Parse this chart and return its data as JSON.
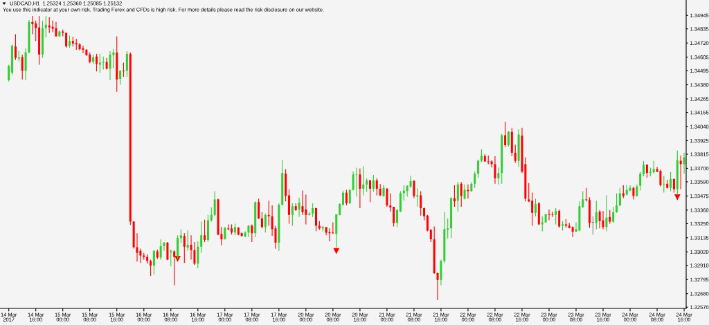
{
  "chart_data": {
    "type": "candlestick",
    "title": "USDCAD,H1  1.25324 1.25360 1.25085 1.25132",
    "subtitle": "You use this indicator at your own risk. Trading Forex and CFDs is high risk. For more details please read the risk disclosure on our website.",
    "categories": [
      "14 Mar 2017",
      null,
      null,
      null,
      null,
      null,
      null,
      null,
      "14 Mar 16:00",
      null,
      null,
      null,
      null,
      null,
      null,
      null,
      "15 Mar 00:00",
      null,
      null,
      null,
      null,
      null,
      null,
      null,
      "15 Mar 08:00",
      null,
      null,
      null,
      null,
      null,
      null,
      null,
      "15 Mar 16:00",
      null,
      null,
      null,
      null,
      null,
      null,
      null,
      "16 Mar 00:00",
      null,
      null,
      null,
      null,
      null,
      null,
      null,
      "16 Mar 08:00",
      null,
      null,
      null,
      null,
      null,
      null,
      null,
      "16 Mar 16:00",
      null,
      null,
      null,
      null,
      null,
      null,
      null,
      "17 Mar 00:00",
      null,
      null,
      null,
      null,
      null,
      null,
      null,
      "17 Mar 08:00",
      null,
      null,
      null,
      null,
      null,
      null,
      null,
      "17 Mar 16:00",
      null,
      null,
      null,
      null,
      null,
      null,
      null,
      "20 Mar 00:00",
      null,
      null,
      null,
      null,
      null,
      null,
      null,
      "20 Mar 08:00",
      null,
      null,
      null,
      null,
      null,
      null,
      null,
      "20 Mar 16:00",
      null,
      null,
      null,
      null,
      null,
      null,
      null,
      "21 Mar 00:00",
      null,
      null,
      null,
      null,
      null,
      null,
      null,
      "21 Mar 08:00",
      null,
      null,
      null,
      null,
      null,
      null,
      null,
      "21 Mar 16:00",
      null,
      null,
      null,
      null,
      null,
      null,
      null,
      "22 Mar 00:00",
      null,
      null,
      null,
      null,
      null,
      null,
      null,
      "22 Mar 08:00",
      null,
      null,
      null,
      null,
      null,
      null,
      null,
      "22 Mar 16:00",
      null,
      null,
      null,
      null,
      null,
      null,
      null,
      "23 Mar 00:00",
      null,
      null,
      null,
      null,
      null,
      null,
      null,
      "23 Mar 08:00",
      null,
      null,
      null,
      null,
      null,
      null,
      null,
      "23 Mar 16:00",
      null,
      null,
      null,
      null,
      null,
      null,
      null,
      "24 Mar 00:00",
      null,
      null,
      null,
      null,
      null,
      null,
      null,
      "24 Mar 08:00",
      null,
      null,
      null,
      null,
      null,
      null,
      null,
      "24 Mar 16:00"
    ],
    "ohlc": [
      [
        1.34417,
        1.34544,
        1.34406,
        1.34533
      ],
      [
        1.34478,
        1.34709,
        1.34461,
        1.34698
      ],
      [
        1.34692,
        1.34792,
        1.34582,
        1.34599
      ],
      [
        1.34593,
        1.34654,
        1.34571,
        1.34604
      ],
      [
        1.34604,
        1.34626,
        1.34423,
        1.34494
      ],
      [
        1.34494,
        1.34676,
        1.34417,
        1.34643
      ],
      [
        1.34643,
        1.34907,
        1.34637,
        1.34891
      ],
      [
        1.34891,
        1.3494,
        1.34792,
        1.34874
      ],
      [
        1.3488,
        1.34902,
        1.34737,
        1.34841
      ],
      [
        1.34847,
        1.3494,
        1.34544,
        1.34626
      ],
      [
        1.34626,
        1.34902,
        1.34599,
        1.34841
      ],
      [
        1.34841,
        1.3494,
        1.34764,
        1.34869
      ],
      [
        1.34863,
        1.34929,
        1.34803,
        1.34847
      ],
      [
        1.34852,
        1.34902,
        1.34808,
        1.34836
      ],
      [
        1.34841,
        1.34891,
        1.3477,
        1.34775
      ],
      [
        1.34775,
        1.34819,
        1.3477,
        1.34814
      ],
      [
        1.34814,
        1.3483,
        1.34775,
        1.34803
      ],
      [
        1.34803,
        1.34803,
        1.34681,
        1.34692
      ],
      [
        1.34698,
        1.34781,
        1.34681,
        1.34737
      ],
      [
        1.34737,
        1.3477,
        1.34692,
        1.34715
      ],
      [
        1.3472,
        1.34753,
        1.34665,
        1.34709
      ],
      [
        1.34709,
        1.3472,
        1.34659,
        1.3467
      ],
      [
        1.34676,
        1.34698,
        1.34637,
        1.34665
      ],
      [
        1.34665,
        1.3467,
        1.34615,
        1.34621
      ],
      [
        1.34626,
        1.34643,
        1.34555,
        1.34566
      ],
      [
        1.34566,
        1.34626,
        1.34549,
        1.34604
      ],
      [
        1.3461,
        1.34632,
        1.34489,
        1.34549
      ],
      [
        1.34544,
        1.34632,
        1.34478,
        1.3456
      ],
      [
        1.3456,
        1.3461,
        1.34505,
        1.34566
      ],
      [
        1.34566,
        1.34599,
        1.34505,
        1.34511
      ],
      [
        1.34511,
        1.34654,
        1.34417,
        1.34626
      ],
      [
        1.34621,
        1.3467,
        1.34516,
        1.34643
      ],
      [
        1.34643,
        1.34775,
        1.34323,
        1.34423
      ],
      [
        1.34428,
        1.345,
        1.34379,
        1.34494
      ],
      [
        1.34494,
        1.3456,
        1.34445,
        1.34489
      ],
      [
        1.34494,
        1.34654,
        1.34445,
        1.34632
      ],
      [
        1.34632,
        1.34643,
        1.3324,
        1.33267
      ],
      [
        1.33267,
        1.33271,
        1.33047,
        1.33058
      ],
      [
        1.33058,
        1.33172,
        1.32941,
        1.33012
      ],
      [
        1.33029,
        1.33047,
        1.3293,
        1.3299
      ],
      [
        1.3299,
        1.33012,
        1.32957,
        1.32979
      ],
      [
        1.32979,
        1.33001,
        1.32924,
        1.32946
      ],
      [
        1.32946,
        1.32957,
        1.32825,
        1.32908
      ],
      [
        1.32908,
        1.33034,
        1.32837,
        1.33029
      ],
      [
        1.33024,
        1.3304,
        1.32963,
        1.32974
      ],
      [
        1.32974,
        1.33122,
        1.32957,
        1.33067
      ],
      [
        1.33067,
        1.331,
        1.33029,
        1.33095
      ],
      [
        1.33095,
        1.331,
        1.32952,
        1.32957
      ],
      [
        1.33018,
        1.3304,
        1.32902,
        1.33029
      ],
      [
        1.33024,
        1.33034,
        1.32749,
        1.32979
      ],
      [
        1.32979,
        1.33155,
        1.32963,
        1.33133
      ],
      [
        1.33133,
        1.33205,
        1.33095,
        1.33155
      ],
      [
        1.3315,
        1.33172,
        1.3293,
        1.33062
      ],
      [
        1.33056,
        1.33194,
        1.33029,
        1.33078
      ],
      [
        1.33078,
        1.33155,
        1.32957,
        1.33034
      ],
      [
        1.33034,
        1.331,
        1.32913,
        1.32924
      ],
      [
        1.32924,
        1.33106,
        1.32886,
        1.33062
      ],
      [
        1.33062,
        1.33266,
        1.33012,
        1.33155
      ],
      [
        1.33155,
        1.33282,
        1.331,
        1.33117
      ],
      [
        1.33117,
        1.33321,
        1.331,
        1.33277
      ],
      [
        1.33277,
        1.33381,
        1.33266,
        1.33321
      ],
      [
        1.33321,
        1.33514,
        1.3331,
        1.33447
      ],
      [
        1.33447,
        1.33453,
        1.33155,
        1.33161
      ],
      [
        1.33166,
        1.33222,
        1.33073,
        1.33122
      ],
      [
        1.33122,
        1.33222,
        1.33122,
        1.33216
      ],
      [
        1.33211,
        1.33244,
        1.33194,
        1.33205
      ],
      [
        1.33211,
        1.33244,
        1.33161,
        1.33178
      ],
      [
        1.33178,
        1.33249,
        1.33155,
        1.33222
      ],
      [
        1.33216,
        1.33222,
        1.33155,
        1.33161
      ],
      [
        1.33172,
        1.33177,
        1.33144,
        1.3315
      ],
      [
        1.33144,
        1.33188,
        1.33139,
        1.33177
      ],
      [
        1.33177,
        1.33238,
        1.33139,
        1.33233
      ],
      [
        1.33233,
        1.33244,
        1.331,
        1.33172
      ],
      [
        1.33172,
        1.33431,
        1.33139,
        1.33425
      ],
      [
        1.33425,
        1.33453,
        1.33288,
        1.33293
      ],
      [
        1.33293,
        1.33343,
        1.33211,
        1.33222
      ],
      [
        1.33222,
        1.33332,
        1.33177,
        1.33321
      ],
      [
        1.33321,
        1.33437,
        1.33233,
        1.3331
      ],
      [
        1.3331,
        1.33398,
        1.3315,
        1.33205
      ],
      [
        1.33211,
        1.33233,
        1.33045,
        1.33095
      ],
      [
        1.33095,
        1.33415,
        1.33029,
        1.33403
      ],
      [
        1.33403,
        1.33767,
        1.33398,
        1.33662
      ],
      [
        1.33657,
        1.33694,
        1.33431,
        1.33475
      ],
      [
        1.3348,
        1.33529,
        1.33249,
        1.33321
      ],
      [
        1.33321,
        1.33415,
        1.33233,
        1.33392
      ],
      [
        1.33392,
        1.33415,
        1.33354,
        1.3336
      ],
      [
        1.33365,
        1.33462,
        1.33304,
        1.3342
      ],
      [
        1.33392,
        1.33519,
        1.33321,
        1.33343
      ],
      [
        1.33365,
        1.33486,
        1.33244,
        1.33321
      ],
      [
        1.33321,
        1.33343,
        1.33315,
        1.33332
      ],
      [
        1.33332,
        1.33415,
        1.33304,
        1.33376
      ],
      [
        1.33376,
        1.3338,
        1.33188,
        1.33233
      ],
      [
        1.33233,
        1.33271,
        1.332,
        1.33211
      ],
      [
        1.33211,
        1.33233,
        1.33188,
        1.33222
      ],
      [
        1.33222,
        1.33222,
        1.33155,
        1.33177
      ],
      [
        1.3318,
        1.33211,
        1.33106,
        1.33172
      ],
      [
        1.33177,
        1.3326,
        1.33166,
        1.33172
      ],
      [
        1.33166,
        1.33326,
        1.33056,
        1.33326
      ],
      [
        1.33321,
        1.33415,
        1.33319,
        1.33409
      ],
      [
        1.33403,
        1.33519,
        1.33398,
        1.33502
      ],
      [
        1.33502,
        1.33525,
        1.33398,
        1.33415
      ],
      [
        1.33415,
        1.33529,
        1.33409,
        1.33525
      ],
      [
        1.33525,
        1.33674,
        1.33519,
        1.3365
      ],
      [
        1.33646,
        1.33705,
        1.3347,
        1.3365
      ],
      [
        1.3365,
        1.337,
        1.33376,
        1.33534
      ],
      [
        1.33534,
        1.33717,
        1.3348,
        1.33568
      ],
      [
        1.33568,
        1.33619,
        1.33508,
        1.33602
      ],
      [
        1.33602,
        1.33607,
        1.33425,
        1.33534
      ],
      [
        1.33534,
        1.33646,
        1.33508,
        1.33602
      ],
      [
        1.33602,
        1.33619,
        1.3348,
        1.33534
      ],
      [
        1.33534,
        1.33571,
        1.33475,
        1.3348
      ],
      [
        1.33475,
        1.33563,
        1.3347,
        1.33541
      ],
      [
        1.33534,
        1.33541,
        1.33387,
        1.33398
      ],
      [
        1.33398,
        1.33497,
        1.33348,
        1.33381
      ],
      [
        1.33387,
        1.33387,
        1.33227,
        1.33255
      ],
      [
        1.33255,
        1.3337,
        1.33222,
        1.3336
      ],
      [
        1.33348,
        1.33514,
        1.33343,
        1.33497
      ],
      [
        1.33497,
        1.33563,
        1.33437,
        1.33519
      ],
      [
        1.33514,
        1.33563,
        1.3347,
        1.33558
      ],
      [
        1.33552,
        1.3364,
        1.33541,
        1.33596
      ],
      [
        1.33596,
        1.33607,
        1.33458,
        1.33475
      ],
      [
        1.3347,
        1.33536,
        1.33387,
        1.3348
      ],
      [
        1.3348,
        1.33514,
        1.33315,
        1.33376
      ],
      [
        1.33376,
        1.33381,
        1.33277,
        1.3331
      ],
      [
        1.33315,
        1.33321,
        1.33188,
        1.33194
      ],
      [
        1.332,
        1.33205,
        1.331,
        1.33122
      ],
      [
        1.33122,
        1.33227,
        1.32842,
        1.32847
      ],
      [
        1.32847,
        1.32853,
        1.32627,
        1.32792
      ],
      [
        1.32792,
        1.32957,
        1.32749,
        1.32946
      ],
      [
        1.32946,
        1.33343,
        1.3293,
        1.33205
      ],
      [
        1.332,
        1.33293,
        1.33128,
        1.33211
      ],
      [
        1.33211,
        1.33464,
        1.33133,
        1.33458
      ],
      [
        1.33458,
        1.33563,
        1.33387,
        1.33431
      ],
      [
        1.33437,
        1.33589,
        1.33348,
        1.33569
      ],
      [
        1.33574,
        1.33589,
        1.33387,
        1.33475
      ],
      [
        1.33453,
        1.33569,
        1.33447,
        1.33525
      ],
      [
        1.33525,
        1.33569,
        1.33453,
        1.33514
      ],
      [
        1.33514,
        1.33589,
        1.33508,
        1.33574
      ],
      [
        1.33574,
        1.33674,
        1.33541,
        1.33657
      ],
      [
        1.33657,
        1.33772,
        1.33624,
        1.33762
      ],
      [
        1.33762,
        1.33855,
        1.33751,
        1.33805
      ],
      [
        1.338,
        1.33817,
        1.33751,
        1.33756
      ],
      [
        1.33756,
        1.33805,
        1.33734,
        1.33751
      ],
      [
        1.33756,
        1.33767,
        1.33706,
        1.33734
      ],
      [
        1.33734,
        1.338,
        1.33574,
        1.33619
      ],
      [
        1.33619,
        1.33706,
        1.33569,
        1.33662
      ],
      [
        1.33662,
        1.3398,
        1.33574,
        1.33969
      ],
      [
        1.33969,
        1.34079,
        1.33871,
        1.33888
      ],
      [
        1.33888,
        1.34003,
        1.33877,
        1.33997
      ],
      [
        1.33997,
        1.3403,
        1.338,
        1.33827
      ],
      [
        1.33827,
        1.33893,
        1.33745,
        1.33761
      ],
      [
        1.33761,
        1.34017,
        1.33712,
        1.33976
      ],
      [
        1.33966,
        1.3403,
        1.33662,
        1.33674
      ],
      [
        1.33734,
        1.33789,
        1.33431,
        1.33453
      ],
      [
        1.33447,
        1.3358,
        1.33425,
        1.33431
      ],
      [
        1.33437,
        1.33502,
        1.33233,
        1.33338
      ],
      [
        1.33338,
        1.33453,
        1.3331,
        1.33409
      ],
      [
        1.33415,
        1.33425,
        1.33238,
        1.33244
      ],
      [
        1.33244,
        1.3331,
        1.33188,
        1.3326
      ],
      [
        1.3326,
        1.33332,
        1.33255,
        1.33326
      ],
      [
        1.33326,
        1.33365,
        1.33277,
        1.33321
      ],
      [
        1.33326,
        1.33348,
        1.33304,
        1.33321
      ],
      [
        1.33321,
        1.33376,
        1.33244,
        1.33354
      ],
      [
        1.33354,
        1.33365,
        1.33216,
        1.33227
      ],
      [
        1.33233,
        1.33271,
        1.33194,
        1.33244
      ],
      [
        1.33244,
        1.33288,
        1.33216,
        1.33233
      ],
      [
        1.33233,
        1.33255,
        1.33211,
        1.33216
      ],
      [
        1.33222,
        1.33227,
        1.33139,
        1.33183
      ],
      [
        1.33183,
        1.3326,
        1.33183,
        1.33205
      ],
      [
        1.33194,
        1.33431,
        1.33188,
        1.33392
      ],
      [
        1.33387,
        1.33514,
        1.33376,
        1.33447
      ],
      [
        1.33447,
        1.33541,
        1.33431,
        1.33442
      ],
      [
        1.33442,
        1.33464,
        1.33216,
        1.33255
      ],
      [
        1.3326,
        1.3331,
        1.33161,
        1.3326
      ],
      [
        1.33255,
        1.33437,
        1.33205,
        1.33343
      ],
      [
        1.33348,
        1.3336,
        1.33211,
        1.33271
      ],
      [
        1.33277,
        1.33354,
        1.33205,
        1.33222
      ],
      [
        1.33222,
        1.3348,
        1.33188,
        1.33299
      ],
      [
        1.33304,
        1.3336,
        1.33249,
        1.33266
      ],
      [
        1.33266,
        1.33387,
        1.33255,
        1.33343
      ],
      [
        1.33343,
        1.33497,
        1.33338,
        1.33398
      ],
      [
        1.33398,
        1.33541,
        1.33392,
        1.33497
      ],
      [
        1.33497,
        1.33563,
        1.33458,
        1.33475
      ],
      [
        1.33486,
        1.33563,
        1.3348,
        1.33525
      ],
      [
        1.33519,
        1.33563,
        1.33514,
        1.33541
      ],
      [
        1.33541,
        1.33552,
        1.33447,
        1.33475
      ],
      [
        1.33475,
        1.33569,
        1.3347,
        1.33552
      ],
      [
        1.33558,
        1.33672,
        1.33519,
        1.33657
      ],
      [
        1.33652,
        1.3376,
        1.33635,
        1.3373
      ],
      [
        1.3373,
        1.33734,
        1.33624,
        1.33662
      ],
      [
        1.33662,
        1.33705,
        1.33635,
        1.33672
      ],
      [
        1.33668,
        1.33762,
        1.33657,
        1.33694
      ],
      [
        1.33694,
        1.33712,
        1.33668,
        1.33672
      ],
      [
        1.33679,
        1.3369,
        1.33552,
        1.33563
      ],
      [
        1.33569,
        1.3364,
        1.33502,
        1.33574
      ],
      [
        1.33574,
        1.33607,
        1.33536,
        1.33541
      ],
      [
        1.33541,
        1.33668,
        1.33514,
        1.33613
      ],
      [
        1.33613,
        1.33619,
        1.33502,
        1.3353
      ],
      [
        1.3353,
        1.33845,
        1.33486,
        1.33767
      ],
      [
        1.33762,
        1.33805,
        1.3353,
        1.33734
      ],
      [
        1.33734,
        1.33827,
        1.33657,
        1.33789
      ]
    ],
    "colors": [
      "#32cd32",
      "#32cd32",
      "#ff0000",
      "#32cd32",
      "#ff0000",
      "#32cd32",
      "#32cd32",
      "#ff0000",
      "#ff0000",
      "#ff0000",
      "#32cd32",
      "#32cd32",
      "#ff0000",
      "#ff0000",
      "#ff0000",
      "#32cd32",
      "#ff0000",
      "#ff0000",
      "#32cd32",
      "#ff0000",
      "#ff0000",
      "#ff0000",
      "#ff0000",
      "#ff0000",
      "#ff0000",
      "#32cd32",
      "#ff0000",
      "#32cd32",
      "#32cd32",
      "#ff0000",
      "#32cd32",
      "#32cd32",
      "#ff0000",
      "#32cd32",
      "#ff0000",
      "#32cd32",
      "#ff0000",
      "#ff0000",
      "#ff0000",
      "#ff0000",
      "#ff0000",
      "#ff0000",
      "#ff0000",
      "#32cd32",
      "#ff0000",
      "#32cd32",
      "#32cd32",
      "#ff0000",
      "#32cd32",
      "#ff0000",
      "#32cd32",
      "#32cd32",
      "#ff0000",
      "#32cd32",
      "#ff0000",
      "#ff0000",
      "#32cd32",
      "#32cd32",
      "#ff0000",
      "#32cd32",
      "#32cd32",
      "#32cd32",
      "#ff0000",
      "#ff0000",
      "#32cd32",
      "#ff0000",
      "#ff0000",
      "#32cd32",
      "#ff0000",
      "#ff0000",
      "#32cd32",
      "#32cd32",
      "#ff0000",
      "#32cd32",
      "#ff0000",
      "#ff0000",
      "#32cd32",
      "#ff0000",
      "#ff0000",
      "#ff0000",
      "#32cd32",
      "#32cd32",
      "#ff0000",
      "#ff0000",
      "#32cd32",
      "#ff0000",
      "#32cd32",
      "#ff0000",
      "#ff0000",
      "#32cd32",
      "#32cd32",
      "#ff0000",
      "#ff0000",
      "#32cd32",
      "#ff0000",
      "#ff0000",
      "#ff0000",
      "#32cd32",
      "#32cd32",
      "#32cd32",
      "#ff0000",
      "#32cd32",
      "#32cd32",
      "#32cd32",
      "#ff0000",
      "#32cd32",
      "#32cd32",
      "#ff0000",
      "#32cd32",
      "#ff0000",
      "#ff0000",
      "#32cd32",
      "#ff0000",
      "#ff0000",
      "#ff0000",
      "#32cd32",
      "#32cd32",
      "#32cd32",
      "#32cd32",
      "#32cd32",
      "#ff0000",
      "#32cd32",
      "#ff0000",
      "#ff0000",
      "#ff0000",
      "#ff0000",
      "#ff0000",
      "#ff0000",
      "#32cd32",
      "#32cd32",
      "#32cd32",
      "#32cd32",
      "#ff0000",
      "#32cd32",
      "#ff0000",
      "#32cd32",
      "#ff0000",
      "#32cd32",
      "#32cd32",
      "#32cd32",
      "#32cd32",
      "#ff0000",
      "#ff0000",
      "#ff0000",
      "#ff0000",
      "#32cd32",
      "#32cd32",
      "#ff0000",
      "#32cd32",
      "#ff0000",
      "#ff0000",
      "#32cd32",
      "#ff0000",
      "#ff0000",
      "#ff0000",
      "#ff0000",
      "#32cd32",
      "#ff0000",
      "#32cd32",
      "#32cd32",
      "#ff0000",
      "#ff0000",
      "#32cd32",
      "#ff0000",
      "#32cd32",
      "#ff0000",
      "#ff0000",
      "#ff0000",
      "#32cd32",
      "#32cd32",
      "#32cd32",
      "#ff0000",
      "#ff0000",
      "#808080",
      "#32cd32",
      "#ff0000",
      "#ff0000",
      "#32cd32",
      "#ff0000",
      "#32cd32",
      "#32cd32",
      "#32cd32",
      "#ff0000",
      "#32cd32",
      "#32cd32",
      "#ff0000",
      "#32cd32",
      "#32cd32",
      "#32cd32",
      "#ff0000",
      "#32cd32",
      "#32cd32",
      "#ff0000",
      "#ff0000",
      "#32cd32",
      "#ff0000",
      "#32cd32",
      "#ff0000",
      "#32cd32",
      "#ff0000",
      "#32cd32"
    ],
    "series": [
      {
        "type": "scatter",
        "color": "#ff0000",
        "marker": "triangle",
        "values": [
          null,
          null,
          null,
          null,
          null,
          null,
          null,
          null,
          null,
          null,
          null,
          null,
          null,
          null,
          null,
          null,
          null,
          null,
          null,
          null,
          null,
          null,
          null,
          null,
          null,
          null,
          null,
          null,
          null,
          null,
          null,
          null,
          null,
          null,
          null,
          null,
          null,
          null,
          null,
          null,
          null,
          null,
          null,
          null,
          null,
          null,
          null,
          null,
          null,
          null,
          1.32963,
          null,
          null,
          null,
          null,
          null,
          null,
          null,
          null,
          null,
          null,
          null,
          null,
          null,
          null,
          null,
          null,
          null,
          null,
          null,
          null,
          null,
          null,
          null,
          null,
          null,
          null,
          null,
          null,
          null,
          null,
          null,
          null,
          null,
          null,
          null,
          null,
          null,
          null,
          null,
          null,
          null,
          null,
          null,
          null,
          null,
          null,
          1.33026,
          null,
          null,
          null,
          null,
          null,
          null,
          null,
          null,
          null,
          null,
          null,
          null,
          null,
          null,
          null,
          null,
          null,
          null,
          null,
          null,
          null,
          null,
          null,
          null,
          null,
          null,
          null,
          null,
          null,
          null,
          null,
          null,
          null,
          null,
          null,
          null,
          null,
          null,
          null,
          null,
          null,
          null,
          null,
          null,
          null,
          null,
          null,
          null,
          null,
          null,
          null,
          null,
          null,
          null,
          null,
          null,
          null,
          null,
          null,
          null,
          null,
          null,
          null,
          null,
          null,
          null,
          null,
          null,
          null,
          null,
          null,
          null,
          null,
          null,
          null,
          null,
          null,
          null,
          null,
          null,
          null,
          null,
          null,
          null,
          null,
          null,
          null,
          null,
          null,
          null,
          null,
          null,
          null,
          null,
          null,
          null,
          null,
          null,
          null,
          null,
          1.33464,
          null,
          null
        ]
      }
    ],
    "ylim": [
      1.3256,
      1.3507
    ],
    "yticks": [
      1.34945,
      1.34835,
      {
        "value": 1.3472,
        "label": "1.34720"
      },
      1.34605,
      1.34495,
      {
        "value": 1.3438,
        "label": "1.34380"
      },
      1.34265,
      1.34155,
      {
        "value": 1.3404,
        "label": "1.34040"
      },
      1.33925,
      1.33815,
      {
        "value": 1.337,
        "label": "1.33700"
      },
      {
        "value": 1.3359,
        "label": "1.33590"
      },
      1.33475,
      {
        "value": 1.3336,
        "label": "1.33360"
      },
      {
        "value": 1.3325,
        "label": "1.33250"
      },
      1.33135,
      {
        "value": 1.3302,
        "label": "1.33020"
      },
      {
        "value": 1.3291,
        "label": "1.32910"
      },
      1.32795,
      {
        "value": 1.3268,
        "label": "1.32680"
      },
      {
        "value": 1.3257,
        "label": "1.32570"
      }
    ]
  }
}
